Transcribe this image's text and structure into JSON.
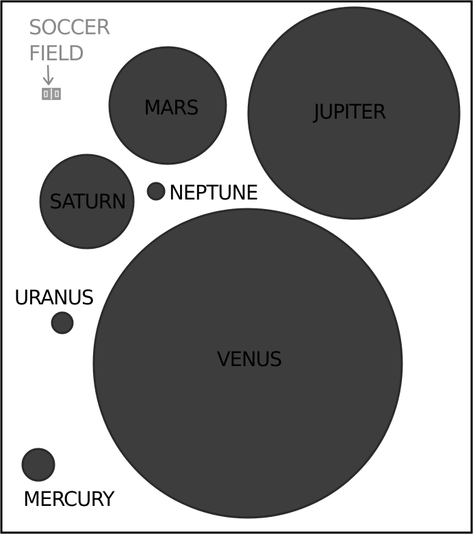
{
  "diagram": {
    "reference": {
      "line1": "SOCCER",
      "line2": "FIELD",
      "color": "#8a8a8a",
      "icon": "soccer-field-icon"
    },
    "colors": {
      "planet_fill": "#3d3d3d",
      "border": "#000000",
      "background": "#ffffff"
    },
    "planets": [
      {
        "key": "mars",
        "label": "MARS"
      },
      {
        "key": "jupiter",
        "label": "JUPITER"
      },
      {
        "key": "saturn",
        "label": "SATURN"
      },
      {
        "key": "neptune",
        "label": "NEPTUNE"
      },
      {
        "key": "uranus",
        "label": "URANUS"
      },
      {
        "key": "venus",
        "label": "VENUS"
      },
      {
        "key": "mercury",
        "label": "MERCURY"
      }
    ]
  }
}
